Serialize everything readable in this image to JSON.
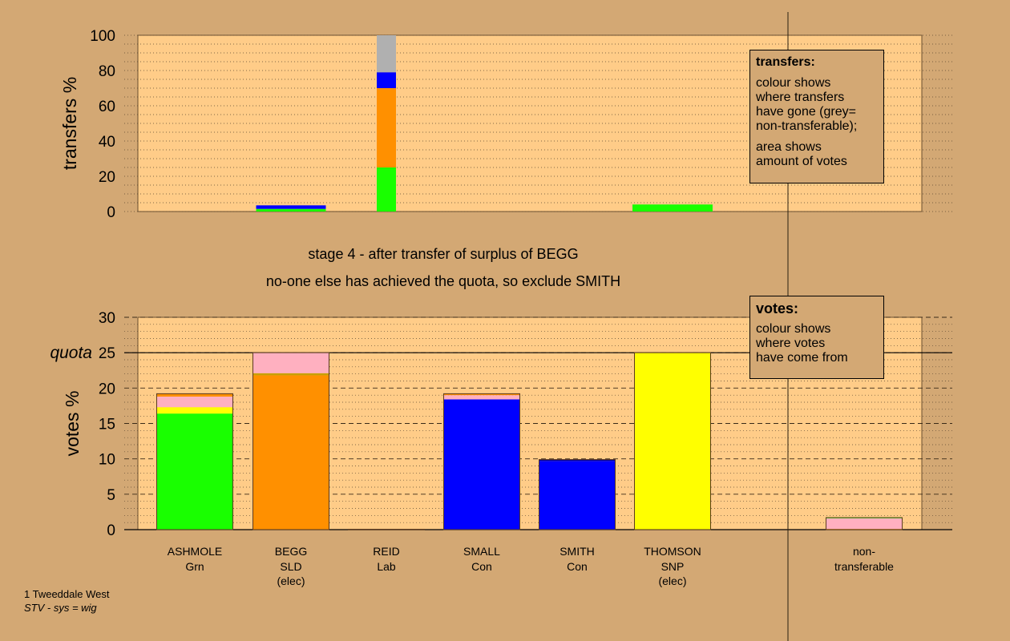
{
  "chart_data": [
    {
      "type": "bar",
      "stacked": true,
      "ylabel": "transfers %",
      "ylim": [
        0,
        100
      ],
      "yticks": [
        0,
        20,
        40,
        60,
        80,
        100
      ],
      "grid": "dotted",
      "columns": [
        {
          "candidate": "ASHMOLE",
          "segments": []
        },
        {
          "candidate": "BEGG",
          "segments": [
            {
              "label": "ASHMOLE",
              "color": "#19ff00",
              "value": 1.5
            },
            {
              "label": "SMALL",
              "color": "#0000ff",
              "value": 2
            }
          ]
        },
        {
          "candidate": "REID",
          "segments": [
            {
              "label": "ASHMOLE",
              "color": "#19ff00",
              "value": 25
            },
            {
              "label": "BEGG",
              "color": "#ff9000",
              "value": 45
            },
            {
              "label": "SMALL",
              "color": "#0000ff",
              "value": 9
            },
            {
              "label": "non-transferable",
              "color": "#b0b0b0",
              "value": 21
            }
          ]
        },
        {
          "candidate": "SMALL",
          "segments": []
        },
        {
          "candidate": "SMITH",
          "segments": []
        },
        {
          "candidate": "THOMSON",
          "segments": [
            {
              "label": "ASHMOLE",
              "color": "#19ff00",
              "value": 4
            }
          ]
        }
      ],
      "legend": {
        "title": "transfers:",
        "lines_a": [
          "colour shows",
          "where transfers",
          "have gone (grey=",
          "non-transferable);"
        ],
        "lines_b": [
          "area shows",
          "amount of votes"
        ]
      }
    },
    {
      "type": "bar",
      "stacked": true,
      "ylabel": "votes %",
      "ylim": [
        0,
        30
      ],
      "yticks": [
        0,
        5,
        10,
        15,
        20,
        25,
        30
      ],
      "quota": 25,
      "quota_label": "quota",
      "grid": "dotted",
      "categories": [
        {
          "name": "ASHMOLE",
          "party": "Grn",
          "note": ""
        },
        {
          "name": "BEGG",
          "party": "SLD",
          "note": "(elec)"
        },
        {
          "name": "REID",
          "party": "Lab",
          "note": ""
        },
        {
          "name": "SMALL",
          "party": "Con",
          "note": ""
        },
        {
          "name": "SMITH",
          "party": "Con",
          "note": ""
        },
        {
          "name": "THOMSON",
          "party": "SNP",
          "note": "(elec)"
        },
        {
          "name": "non-",
          "party": "transferable",
          "note": ""
        }
      ],
      "columns": [
        {
          "candidate": "ASHMOLE",
          "segments": [
            {
              "color": "#19ff00",
              "value": 16.4
            },
            {
              "color": "#ffff00",
              "value": 0.9
            },
            {
              "color": "#ffb0c0",
              "value": 1.5
            },
            {
              "color": "#ff9000",
              "value": 0.4
            }
          ]
        },
        {
          "candidate": "BEGG",
          "segments": [
            {
              "color": "#ff9000",
              "value": 21.8
            },
            {
              "color": "#c8a000",
              "value": 0.3
            },
            {
              "color": "#ffb0c0",
              "value": 2.9
            }
          ]
        },
        {
          "candidate": "REID",
          "segments": [
            {
              "color": "#ff9000",
              "value": 0.05
            }
          ]
        },
        {
          "candidate": "SMALL",
          "segments": [
            {
              "color": "#0000ff",
              "value": 18.4
            },
            {
              "color": "#ffb0c0",
              "value": 0.6
            },
            {
              "color": "#ff9000",
              "value": 0.2
            }
          ]
        },
        {
          "candidate": "SMITH",
          "segments": [
            {
              "color": "#0000ff",
              "value": 9.7
            },
            {
              "color": "#0000a0",
              "value": 0.2
            }
          ]
        },
        {
          "candidate": "THOMSON",
          "segments": [
            {
              "color": "#ffff00",
              "value": 25
            }
          ]
        },
        {
          "candidate": "non-transferable",
          "segments": [
            {
              "color": "#ff9000",
              "value": 0.1
            },
            {
              "color": "#ffb0c0",
              "value": 1.5
            },
            {
              "color": "#19ff00",
              "value": 0.1
            }
          ]
        }
      ],
      "legend": {
        "title": "votes:",
        "lines": [
          "colour shows",
          "where votes",
          "have come from"
        ]
      }
    }
  ],
  "stage": {
    "line1": "stage 4 - after transfer of surplus of BEGG",
    "line2": "no-one else has achieved the quota, so exclude SMITH"
  },
  "footer": {
    "ward": "1 Tweeddale West",
    "system": "STV - sys = wig"
  }
}
